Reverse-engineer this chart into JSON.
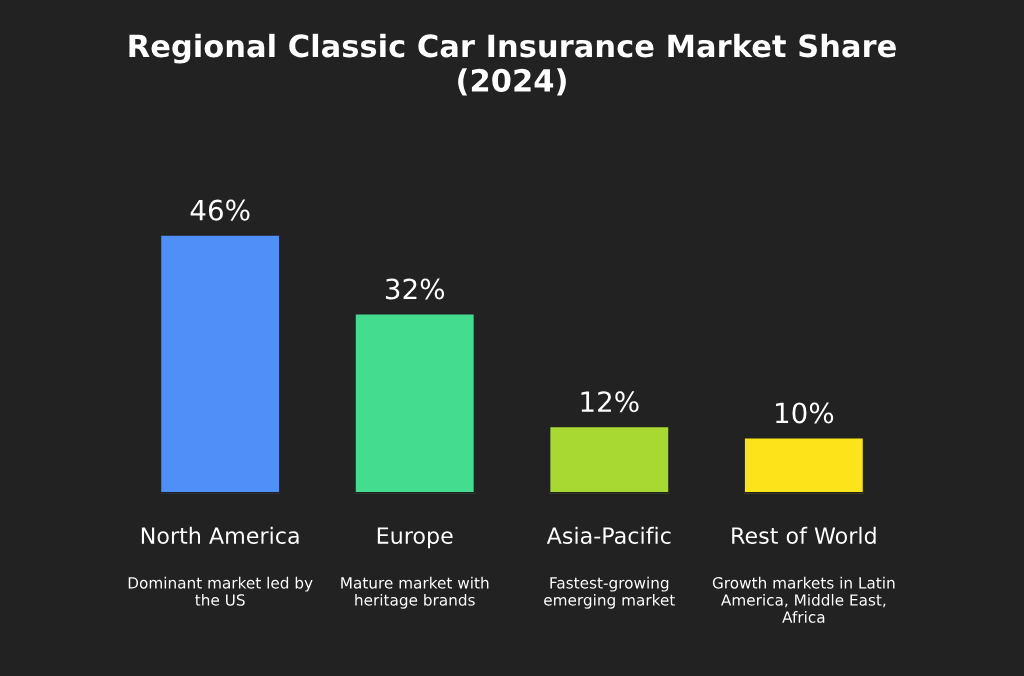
{
  "chart_data": {
    "type": "bar",
    "title": "Regional Classic Car Insurance Market Share\n(2024)",
    "categories": [
      "North America",
      "Europe",
      "Asia-Pacific",
      "Rest of World"
    ],
    "values": [
      46,
      32,
      12,
      10
    ],
    "colors": [
      "#4f8ff7",
      "#44dd90",
      "#a8d932",
      "#fde41a"
    ],
    "value_labels": [
      "46%",
      "32%",
      "12%",
      "10%"
    ],
    "annotations": [
      "Dominant market led by\nthe US",
      "Mature market with\nheritage brands",
      "Fastest-growing\nemerging market",
      "Growth markets in Latin\nAmerica, Middle East,\nAfrica"
    ],
    "grid": false,
    "legend": false
  }
}
